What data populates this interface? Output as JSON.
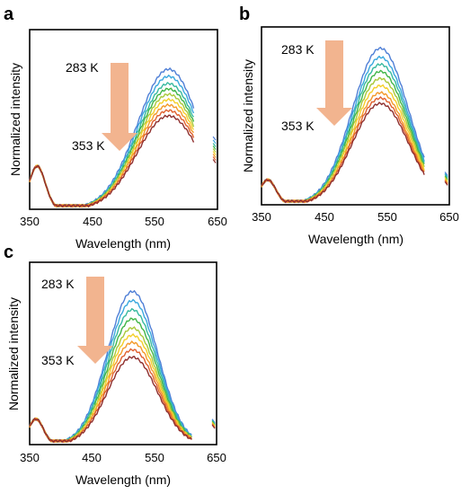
{
  "panel_labels": {
    "a": "a",
    "b": "b",
    "c": "c"
  },
  "chart_data": [
    {
      "panel": "a",
      "type": "line",
      "xlabel": "Wavelength (nm)",
      "ylabel": "Normalized intensity",
      "xlim": [
        350,
        650
      ],
      "xticks": [
        "350",
        "450",
        "550",
        "650"
      ],
      "arrow": {
        "top": "283 K",
        "bottom": "353 K"
      },
      "peak_x": 572,
      "peak_width": 50,
      "peaks": [
        0.78,
        0.74,
        0.7,
        0.67,
        0.64,
        0.61,
        0.58,
        0.55,
        0.52
      ],
      "uv_peak_x": 362,
      "uv_peak": 0.24,
      "uv_width": 13,
      "end_x": 612,
      "stray_x": 643,
      "series_colors": [
        "#4f7fd6",
        "#3aa8de",
        "#37b99f",
        "#42b649",
        "#a9c93a",
        "#f4cf2a",
        "#f39a2a",
        "#e0612f",
        "#8f2f2e"
      ],
      "series_names": [
        "283 K",
        "",
        "",
        "",
        "",
        "",
        "",
        "",
        "353 K"
      ]
    },
    {
      "panel": "b",
      "type": "line",
      "xlabel": "Wavelength (nm)",
      "ylabel": "Normalized intensity",
      "xlim": [
        350,
        650
      ],
      "xticks": [
        "350",
        "450",
        "550",
        "650"
      ],
      "arrow": {
        "top": "283 K",
        "bottom": "353 K"
      },
      "peak_x": 540,
      "peak_width": 45,
      "peaks": [
        0.88,
        0.83,
        0.79,
        0.75,
        0.71,
        0.67,
        0.63,
        0.6,
        0.57
      ],
      "uv_peak_x": 360,
      "uv_peak": 0.14,
      "uv_width": 13,
      "end_x": 610,
      "stray_x": 643,
      "series_colors": [
        "#4f7fd6",
        "#3aa8de",
        "#37b99f",
        "#42b649",
        "#a9c93a",
        "#f4cf2a",
        "#f39a2a",
        "#e0612f",
        "#8f2f2e"
      ],
      "series_names": [
        "283 K",
        "",
        "",
        "",
        "",
        "",
        "",
        "",
        "353 K"
      ]
    },
    {
      "panel": "c",
      "type": "line",
      "xlabel": "Wavelength (nm)",
      "ylabel": "Normalized intensity",
      "xlim": [
        350,
        650
      ],
      "xticks": [
        "350",
        "450",
        "550",
        "650"
      ],
      "arrow": {
        "top": "283 K",
        "bottom": "353 K"
      },
      "peak_x": 515,
      "peak_width": 40,
      "peaks": [
        0.84,
        0.79,
        0.74,
        0.69,
        0.64,
        0.6,
        0.56,
        0.52,
        0.48
      ],
      "uv_peak_x": 360,
      "uv_peak": 0.14,
      "uv_width": 12,
      "end_x": 610,
      "stray_x": 643,
      "series_colors": [
        "#4f7fd6",
        "#3aa8de",
        "#37b99f",
        "#42b649",
        "#a9c93a",
        "#f4cf2a",
        "#f39a2a",
        "#e0612f",
        "#8f2f2e"
      ],
      "series_names": [
        "283 K",
        "",
        "",
        "",
        "",
        "",
        "",
        "",
        "353 K"
      ]
    }
  ]
}
